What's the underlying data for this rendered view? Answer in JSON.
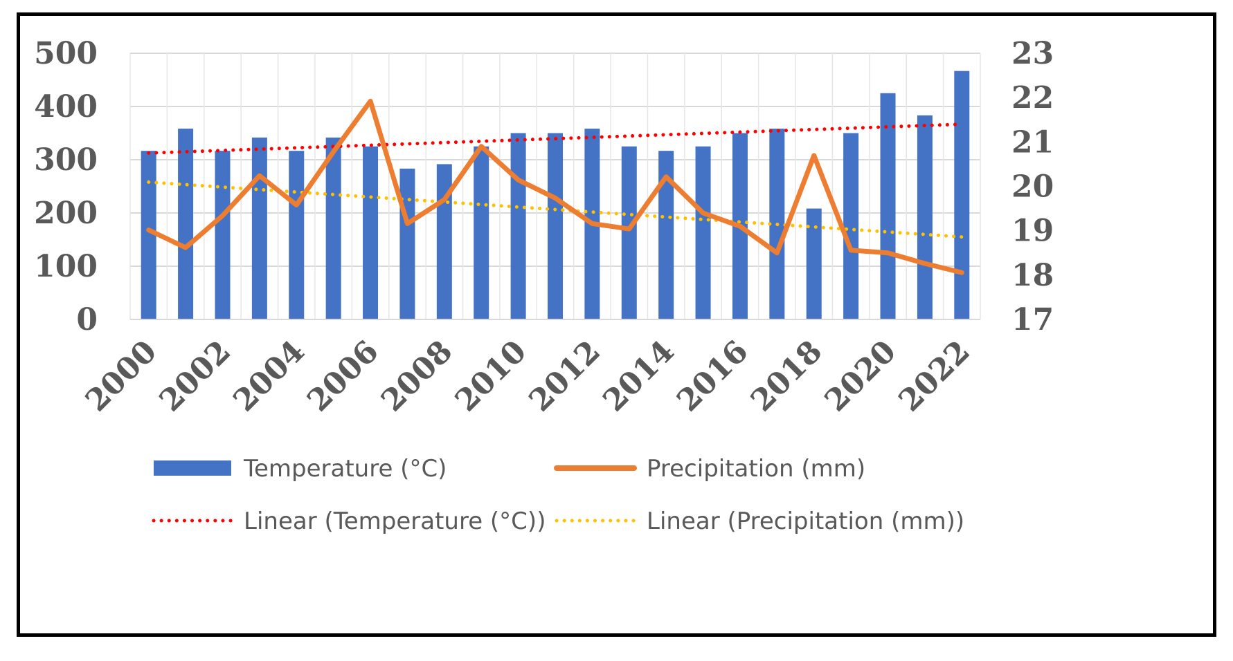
{
  "chart_data": {
    "type": "bar+line",
    "title": "",
    "years": [
      2000,
      2001,
      2002,
      2003,
      2004,
      2005,
      2006,
      2007,
      2008,
      2009,
      2010,
      2011,
      2012,
      2013,
      2014,
      2015,
      2016,
      2017,
      2018,
      2019,
      2020,
      2021,
      2022
    ],
    "x_tick_labels": [
      "2000",
      "2002",
      "2004",
      "2006",
      "2008",
      "2010",
      "2012",
      "2014",
      "2016",
      "2018",
      "2020",
      "2022"
    ],
    "left_axis": {
      "range": [
        0,
        500
      ],
      "ticks": [
        "0",
        "100",
        "200",
        "300",
        "400",
        "500"
      ],
      "grid": true
    },
    "right_axis": {
      "range": [
        17,
        23
      ],
      "ticks": [
        "17",
        "18",
        "19",
        "20",
        "21",
        "22",
        "23"
      ]
    },
    "series": [
      {
        "name": "Temperature (°C)",
        "type": "bar",
        "axis": "right",
        "color": "#4472C4",
        "values": [
          20.8,
          21.3,
          20.8,
          21.1,
          20.8,
          21.1,
          20.9,
          20.4,
          20.5,
          20.9,
          21.2,
          21.2,
          21.3,
          20.9,
          20.8,
          20.9,
          21.2,
          21.3,
          19.5,
          21.2,
          22.1,
          21.6,
          22.6
        ]
      },
      {
        "name": "Precipitation (mm)",
        "type": "line",
        "axis": "left",
        "color": "#ED7D31",
        "values": [
          168,
          135,
          195,
          270,
          215,
          315,
          410,
          180,
          225,
          325,
          262,
          228,
          180,
          170,
          268,
          200,
          175,
          125,
          308,
          130,
          125,
          105,
          88
        ]
      }
    ],
    "trendlines": [
      {
        "name": "Linear (Temperature (°C))",
        "axis": "right",
        "color": "#FF0000",
        "start": 20.75,
        "end": 21.4
      },
      {
        "name": "Linear (Precipitation (mm))",
        "axis": "left",
        "color": "#FFC000",
        "start": 258,
        "end": 155
      }
    ],
    "legend": {
      "position": "bottom",
      "items": [
        "Temperature (°C)",
        "Precipitation (mm)",
        "Linear (Temperature (°C))",
        "Linear (Precipitation (mm))"
      ]
    }
  }
}
